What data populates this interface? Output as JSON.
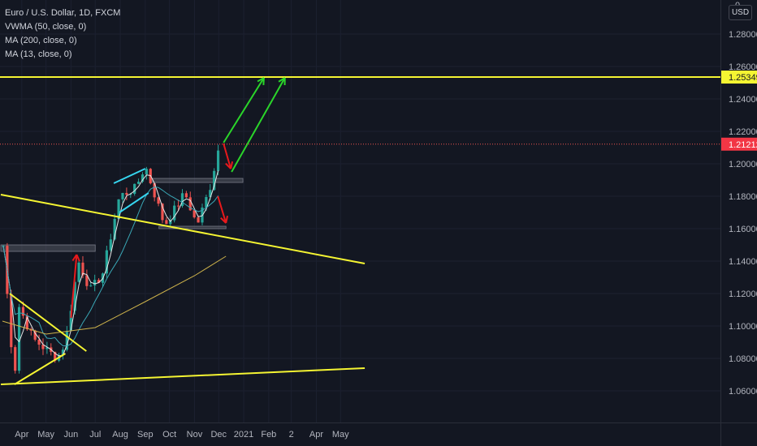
{
  "legend": {
    "symbol": "Euro / U.S. Dollar, 1D, FXCM",
    "indicators": [
      "VWMA (50, close, 0)",
      "MA (200, close, 0)",
      "MA (13, close, 0)"
    ]
  },
  "currency_button": "USD",
  "price_top_partial": "0",
  "colors": {
    "background": "#131722",
    "up_candle": "#26a69a",
    "down_candle": "#ef5350",
    "drawing_line": "#f5f532",
    "channel": "#36d6f0",
    "up_arrow": "#2ad52a",
    "down_arrow": "#e8191c",
    "ma13": "#e6e6e6",
    "vwma50": "#3aa7b6",
    "ma200": "#cdb24b"
  },
  "chart_data": {
    "type": "candlestick",
    "title": "Euro / U.S. Dollar, 1D, FXCM",
    "y_ticks": [
      "1.28000",
      "1.26000",
      "1.24000",
      "1.22000",
      "1.20000",
      "1.18000",
      "1.16000",
      "1.14000",
      "1.12000",
      "1.10000",
      "1.08000",
      "1.06000"
    ],
    "x_ticks": [
      "Apr",
      "May",
      "Jun",
      "Jul",
      "Aug",
      "Sep",
      "Oct",
      "Nov",
      "Dec",
      "2021",
      "Feb",
      "2",
      "Apr",
      "May"
    ],
    "ylim": [
      1.053,
      1.302
    ],
    "price_labels": [
      {
        "value": 1.25349,
        "label": "1.25349",
        "style": "yellow"
      },
      {
        "value": 1.21212,
        "label": "1.21212",
        "style": "red"
      }
    ],
    "key_points": [
      {
        "date": "2020-03-09",
        "close": 1.1495
      },
      {
        "date": "2020-03-23",
        "close": 1.064
      },
      {
        "date": "2020-03-27",
        "close": 1.114
      },
      {
        "date": "2020-04-15",
        "close": 1.092
      },
      {
        "date": "2020-05-15",
        "close": 1.08
      },
      {
        "date": "2020-05-25",
        "close": 1.09
      },
      {
        "date": "2020-06-10",
        "close": 1.14
      },
      {
        "date": "2020-06-25",
        "close": 1.122
      },
      {
        "date": "2020-07-10",
        "close": 1.132
      },
      {
        "date": "2020-07-31",
        "close": 1.18
      },
      {
        "date": "2020-08-20",
        "close": 1.185
      },
      {
        "date": "2020-09-01",
        "close": 1.199
      },
      {
        "date": "2020-09-25",
        "close": 1.162
      },
      {
        "date": "2020-10-20",
        "close": 1.182
      },
      {
        "date": "2020-11-04",
        "close": 1.162
      },
      {
        "date": "2020-11-20",
        "close": 1.185
      },
      {
        "date": "2020-12-01",
        "close": 1.21
      },
      {
        "date": "2020-12-04",
        "close": 1.214
      }
    ],
    "drawings": {
      "horizontal_resistance": 1.2535,
      "triangle_top": [
        [
          "2020-03-17",
          1.12
        ],
        [
          "2020-06-20",
          1.0845
        ]
      ],
      "triangle_bottom": [
        [
          "2020-03-23",
          1.064
        ],
        [
          "2020-05-25",
          1.083
        ]
      ],
      "long_trendline_upper": [
        [
          "2020-03-06",
          1.181
        ],
        [
          "2021-05-31",
          1.1385
        ]
      ],
      "long_trendline_lower": [
        [
          "2020-03-06",
          1.064
        ],
        [
          "2021-05-31",
          1.074
        ]
      ],
      "channel_upper": [
        [
          "2020-07-24",
          1.188
        ],
        [
          "2020-09-01",
          1.197
        ]
      ],
      "channel_lower": [
        [
          "2020-07-31",
          1.17
        ],
        [
          "2020-09-05",
          1.182
        ]
      ],
      "resistance_zone": [
        [
          "2020-03-06",
          1.15,
          1.146
        ],
        [
          "2020-07-01",
          1.15,
          1.146
        ]
      ],
      "consolidation_zone": [
        [
          "2020-09-10",
          1.191,
          1.1885
        ],
        [
          "2020-12-31",
          1.191,
          1.1885
        ]
      ],
      "support_zone": [
        [
          "2020-09-18",
          1.1615,
          1.16
        ],
        [
          "2020-12-10",
          1.1615,
          1.16
        ]
      ],
      "arrows": [
        {
          "color": "up_arrow",
          "from": [
            "2020-12-07",
            1.213
          ],
          "to": [
            "2021-01-26",
            1.253
          ]
        },
        {
          "color": "up_arrow",
          "from": [
            "2020-12-17",
            1.195
          ],
          "to": [
            "2021-02-21",
            1.253
          ]
        },
        {
          "color": "down_arrow",
          "from": [
            "2020-12-07",
            1.2125
          ],
          "to": [
            "2020-12-16",
            1.197
          ]
        },
        {
          "color": "down_arrow",
          "from": [
            "2020-11-30",
            1.18
          ],
          "to": [
            "2020-12-10",
            1.1635
          ]
        },
        {
          "color": "down_arrow",
          "from": [
            "2020-06-01",
            1.105
          ],
          "to": [
            "2020-06-08",
            1.144
          ]
        }
      ]
    }
  }
}
